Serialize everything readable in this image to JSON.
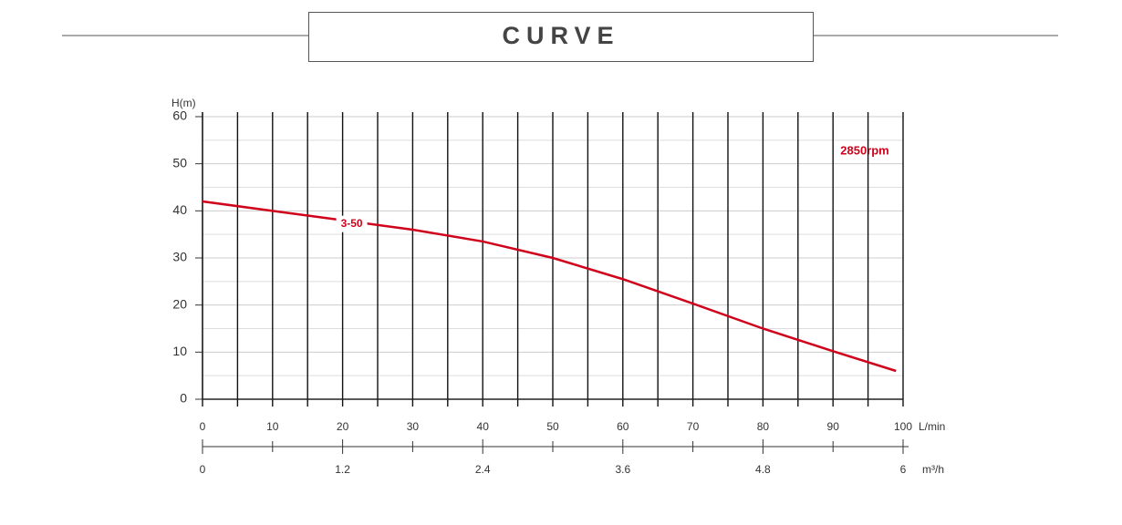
{
  "chart_data": {
    "type": "line",
    "title": "CURVE",
    "y_label": "H(m)",
    "x_label": "L/min",
    "x2_label": "m³/h",
    "xlim": [
      0,
      100
    ],
    "xticks": [
      0,
      10,
      20,
      30,
      40,
      50,
      60,
      70,
      80,
      90,
      100
    ],
    "x2lim": [
      0,
      6
    ],
    "x2ticks": [
      0,
      1.2,
      2.4,
      3.6,
      4.8,
      6
    ],
    "ylim": [
      0,
      60
    ],
    "yticks": [
      0,
      10,
      20,
      30,
      40,
      50,
      60
    ],
    "grid": true,
    "series": [
      {
        "name": "3-50",
        "color": "#d0021b",
        "x": [
          0,
          10,
          20,
          30,
          40,
          50,
          60,
          70,
          80,
          90,
          99
        ],
        "values": [
          42,
          40,
          38,
          36,
          33.5,
          30,
          25.5,
          20.3,
          15,
          10.2,
          6
        ]
      }
    ],
    "annotation": "2850rpm"
  }
}
